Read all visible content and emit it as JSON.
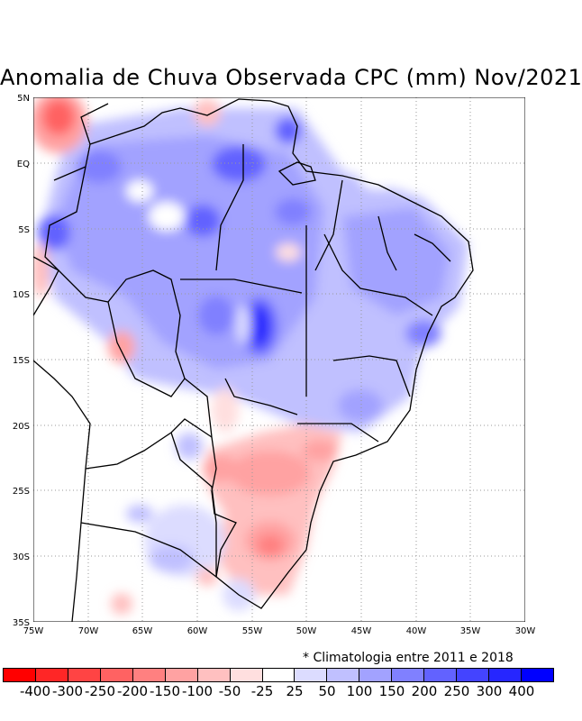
{
  "title": "Anomalia de Chuva Observada CPC (mm) Nov/2021",
  "note": "* Climatologia entre 2011 e 2018",
  "axes": {
    "lon_labels": [
      "75W",
      "70W",
      "65W",
      "60W",
      "55W",
      "50W",
      "45W",
      "40W",
      "35W",
      "30W"
    ],
    "lat_labels": [
      "5N",
      "EQ",
      "5S",
      "10S",
      "15S",
      "20S",
      "25S",
      "30S",
      "35S"
    ],
    "lon_range": [
      -75,
      -30
    ],
    "lat_range": [
      -35,
      5
    ]
  },
  "legend": {
    "colors": [
      "#ff0000",
      "#ff2626",
      "#ff4444",
      "#ff6262",
      "#ff8080",
      "#ffa2a2",
      "#ffc0c0",
      "#ffdfdf",
      "#ffffff",
      "#dcdcff",
      "#c0c0ff",
      "#a2a2ff",
      "#8080ff",
      "#6262ff",
      "#4444ff",
      "#2626ff",
      "#0000ff"
    ],
    "labels": [
      "-400",
      "-300",
      "-250",
      "-200",
      "-150",
      "-100",
      "-50",
      "-25",
      "25",
      "50",
      "100",
      "150",
      "200",
      "250",
      "300",
      "400"
    ]
  }
}
